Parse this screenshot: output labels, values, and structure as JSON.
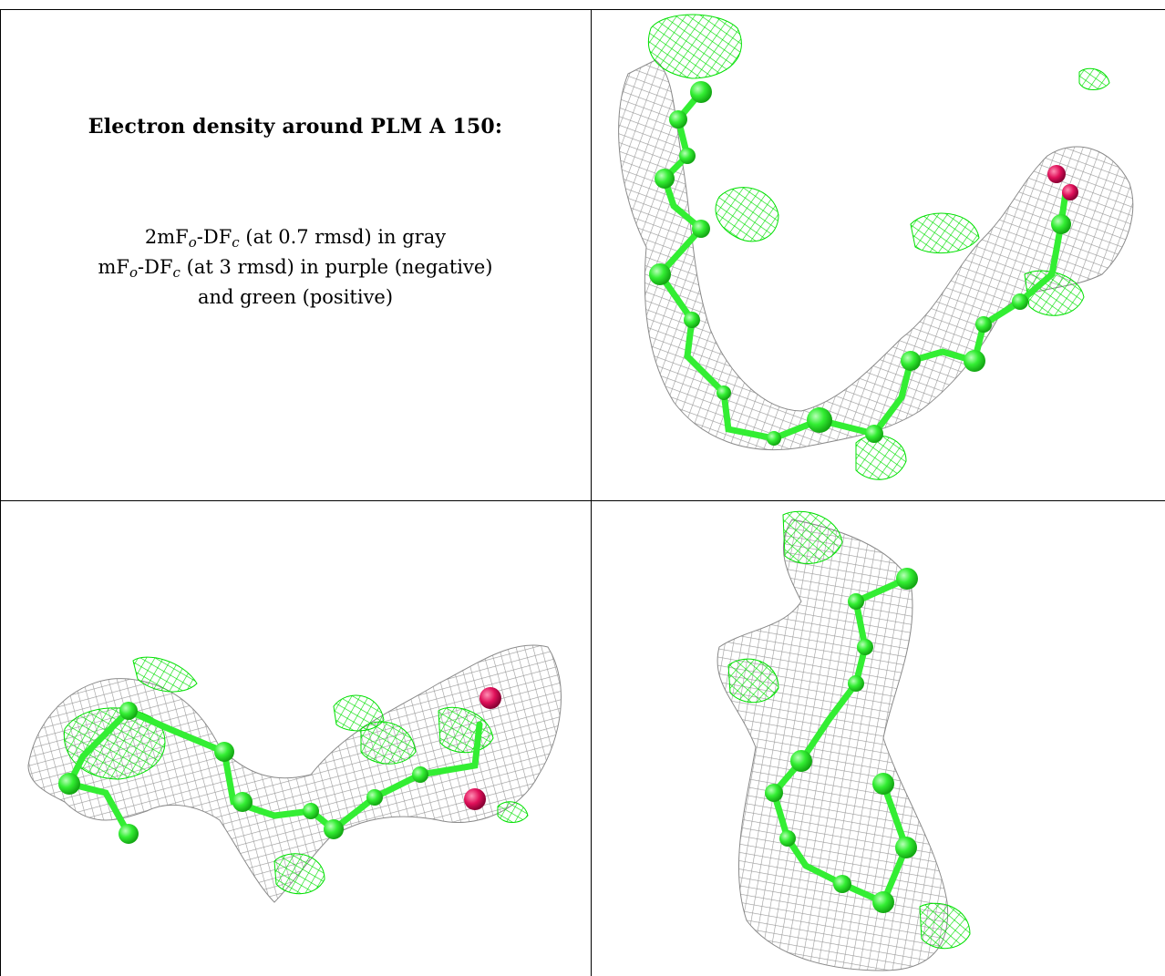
{
  "caption": {
    "title": "Electron density around PLM A 150:",
    "line1": {
      "a": "2mF",
      "sub1": "o",
      "b": "-DF",
      "sub2": "c",
      "c": " (at 0.7 rmsd) in gray"
    },
    "line2": {
      "a": "mF",
      "sub1": "o",
      "b": "-DF",
      "sub2": "c",
      "c": " (at 3 rmsd) in purple (negative)"
    },
    "line3": "and green (positive)"
  },
  "colors": {
    "mesh_gray": "#9a9a9a",
    "difference_positive": "#00e000",
    "atom_carbon": "#33ee33",
    "atom_oxygen": "#e0105a"
  },
  "panels": [
    {
      "name": "view-1",
      "ligand": "PLM A 150"
    },
    {
      "name": "view-2",
      "ligand": "PLM A 150"
    },
    {
      "name": "view-3",
      "ligand": "PLM A 150"
    }
  ]
}
